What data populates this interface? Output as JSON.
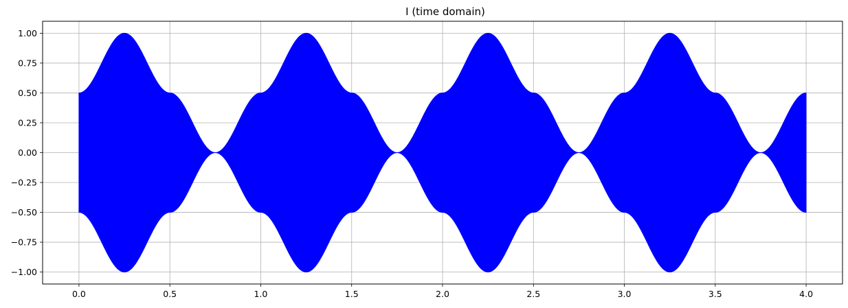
{
  "chart_data": {
    "type": "area",
    "title": "I (time domain)",
    "xlabel": "",
    "ylabel": "",
    "xlim": [
      -0.2,
      4.2
    ],
    "ylim": [
      -1.1,
      1.1
    ],
    "xticks": [
      0.0,
      0.5,
      1.0,
      1.5,
      2.0,
      2.5,
      3.0,
      3.5,
      4.0
    ],
    "xtick_labels": [
      "0.0",
      "0.5",
      "1.0",
      "1.5",
      "2.0",
      "2.5",
      "3.0",
      "3.5",
      "4.0"
    ],
    "yticks": [
      1.0,
      0.75,
      0.5,
      0.25,
      0.0,
      -0.25,
      -0.5,
      -0.75,
      -1.0
    ],
    "ytick_labels": [
      "1.00",
      "0.75",
      "0.50",
      "0.25",
      "0.00",
      "−0.25",
      "−0.50",
      "−0.75",
      "−1.00"
    ],
    "grid": true,
    "series": [
      {
        "color": "#0000ff",
        "x_range": [
          0.0,
          4.0
        ],
        "envelope_upper": {
          "x": [
            0.0,
            0.25,
            0.5,
            0.75,
            1.0,
            1.25,
            1.5,
            1.75,
            2.0,
            2.25,
            2.5,
            2.75,
            3.0,
            3.25,
            3.5,
            3.75,
            4.0
          ],
          "y": [
            0.5,
            1.0,
            0.5,
            0.0,
            0.5,
            1.0,
            0.5,
            0.0,
            0.5,
            1.0,
            0.5,
            0.0,
            0.5,
            1.0,
            0.5,
            0.0,
            0.5
          ]
        },
        "envelope_lower": {
          "x": [
            0.0,
            0.25,
            0.5,
            0.75,
            1.0,
            1.25,
            1.5,
            1.75,
            2.0,
            2.25,
            2.5,
            2.75,
            3.0,
            3.25,
            3.5,
            3.75,
            4.0
          ],
          "y": [
            -0.5,
            -1.0,
            -0.5,
            0.0,
            -0.5,
            -1.0,
            -0.5,
            0.0,
            -0.5,
            -1.0,
            -0.5,
            0.0,
            -0.5,
            -1.0,
            -0.5,
            0.0,
            -0.5
          ]
        }
      }
    ]
  }
}
